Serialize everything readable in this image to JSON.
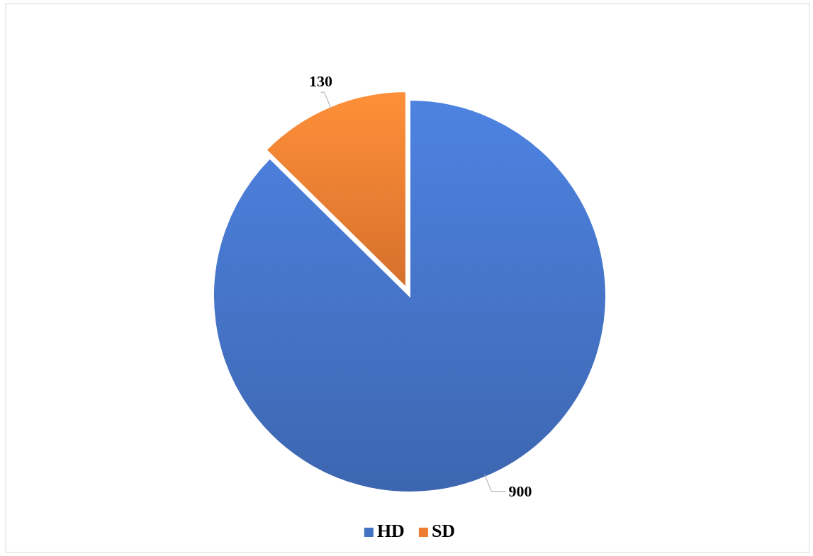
{
  "chart_data": {
    "type": "pie",
    "categories": [
      "HD",
      "SD"
    ],
    "values": [
      900,
      130
    ],
    "colors": [
      "#4472c4",
      "#ed7d31"
    ],
    "data_labels": true,
    "legend": "bottom"
  }
}
